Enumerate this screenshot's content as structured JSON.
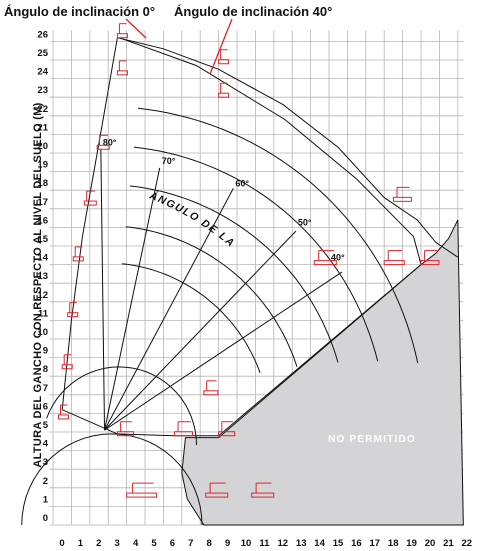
{
  "header": {
    "tilt_0_label": "Ángulo de inclinación 0°",
    "tilt_40_label": "Ángulo de inclinación 40°"
  },
  "axes": {
    "y_label": "ALTURA DEL GANCHO CON RESPECTO AL NIVEL DEL SUELO (M)",
    "x_ticks": [
      "0",
      "1",
      "2",
      "3",
      "4",
      "5",
      "6",
      "7",
      "8",
      "9",
      "10",
      "11",
      "12",
      "13",
      "14",
      "15",
      "16",
      "17",
      "18",
      "19",
      "20",
      "21",
      "22"
    ],
    "y_ticks": [
      "0",
      "1",
      "2",
      "3",
      "4",
      "5",
      "6",
      "7",
      "8",
      "9",
      "10",
      "11",
      "12",
      "13",
      "14",
      "15",
      "16",
      "17",
      "18",
      "19",
      "20",
      "21",
      "22",
      "23",
      "24",
      "25",
      "26"
    ]
  },
  "boom_angle_label": "ÁNGULO DE LA PLUMA",
  "angle_labels": [
    "80°",
    "70°",
    "60°",
    "50°",
    "40°"
  ],
  "forbidden_zone_label": "NO PERMITIDO",
  "colors": {
    "grid": "#b5b5b5",
    "lines": "#111111",
    "platform": "#e0242b",
    "forbidden_fill": "#d4d4d6"
  }
}
